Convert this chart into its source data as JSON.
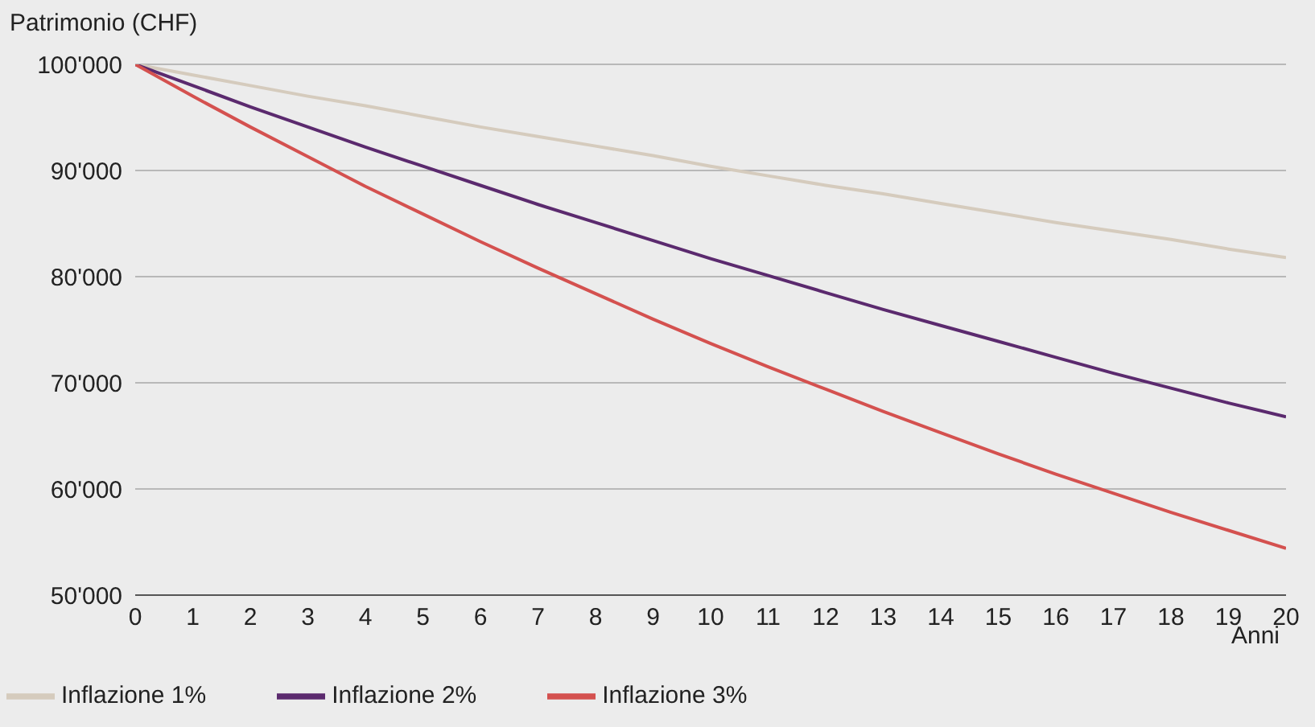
{
  "chart_data": {
    "type": "line",
    "ylabel": "Patrimonio (CHF)",
    "xlabel": "Anni",
    "x": [
      0,
      1,
      2,
      3,
      4,
      5,
      6,
      7,
      8,
      9,
      10,
      11,
      12,
      13,
      14,
      15,
      16,
      17,
      18,
      19,
      20
    ],
    "xlim": [
      0,
      20
    ],
    "xticks": [
      0,
      1,
      2,
      3,
      4,
      5,
      6,
      7,
      8,
      9,
      10,
      11,
      12,
      13,
      14,
      15,
      16,
      17,
      18,
      19,
      20
    ],
    "ylim": [
      50000,
      100000
    ],
    "yticks": [
      {
        "value": 50000,
        "label": "50'000"
      },
      {
        "value": 60000,
        "label": "60'000"
      },
      {
        "value": 70000,
        "label": "70'000"
      },
      {
        "value": 80000,
        "label": "80'000"
      },
      {
        "value": 90000,
        "label": "90'000"
      },
      {
        "value": 100000,
        "label": "100'000"
      }
    ],
    "grid": "y",
    "legend": "bottom left",
    "marker": "none",
    "line_style": "solid",
    "series": [
      {
        "name": "Inflazione 1%",
        "color": "#d5cbbd",
        "values": [
          100000,
          99000,
          98000,
          97000,
          96100,
          95100,
          94100,
          93200,
          92300,
          91400,
          90400,
          89500,
          88600,
          87800,
          86900,
          86000,
          85100,
          84300,
          83500,
          82600,
          81800
        ]
      },
      {
        "name": "Inflazione 2%",
        "color": "#5b2a6e",
        "values": [
          100000,
          98000,
          96000,
          94100,
          92200,
          90400,
          88600,
          86800,
          85100,
          83400,
          81700,
          80100,
          78500,
          76900,
          75400,
          73900,
          72400,
          70900,
          69500,
          68100,
          66800
        ]
      },
      {
        "name": "Inflazione 3%",
        "color": "#d4514f",
        "values": [
          100000,
          97000,
          94100,
          91300,
          88500,
          85900,
          83300,
          80800,
          78400,
          76000,
          73700,
          71500,
          69400,
          67300,
          65300,
          63300,
          61400,
          59600,
          57800,
          56100,
          54400
        ]
      }
    ]
  }
}
